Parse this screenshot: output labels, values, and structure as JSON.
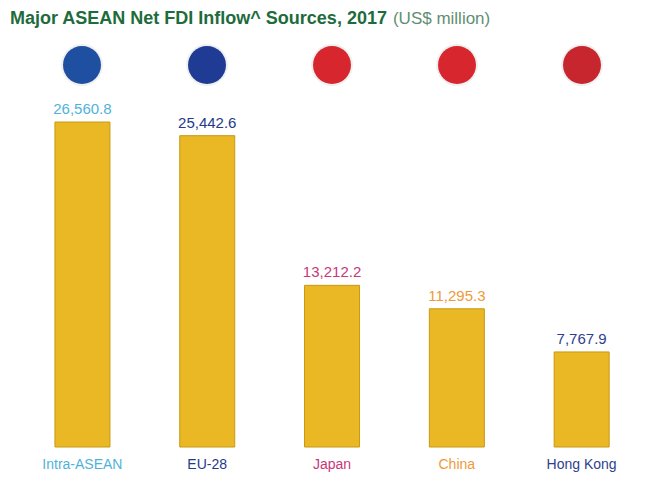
{
  "chart_data": {
    "type": "bar",
    "title": "Major ASEAN Net FDI Inflow^ Sources, 2017",
    "subtitle": "(US$ million)",
    "categories": [
      "Intra-ASEAN",
      "EU-28",
      "Japan",
      "China",
      "Hong Kong"
    ],
    "values": [
      26560.8,
      25442.6,
      13212.2,
      11295.3,
      7767.9
    ],
    "value_labels": [
      "26,560.8",
      "25,442.6",
      "13,212.2",
      "11,295.3",
      "7,767.9"
    ],
    "color": "#e9b824",
    "data_labels": true,
    "grid": false,
    "tick_labels": "x"
  }
}
